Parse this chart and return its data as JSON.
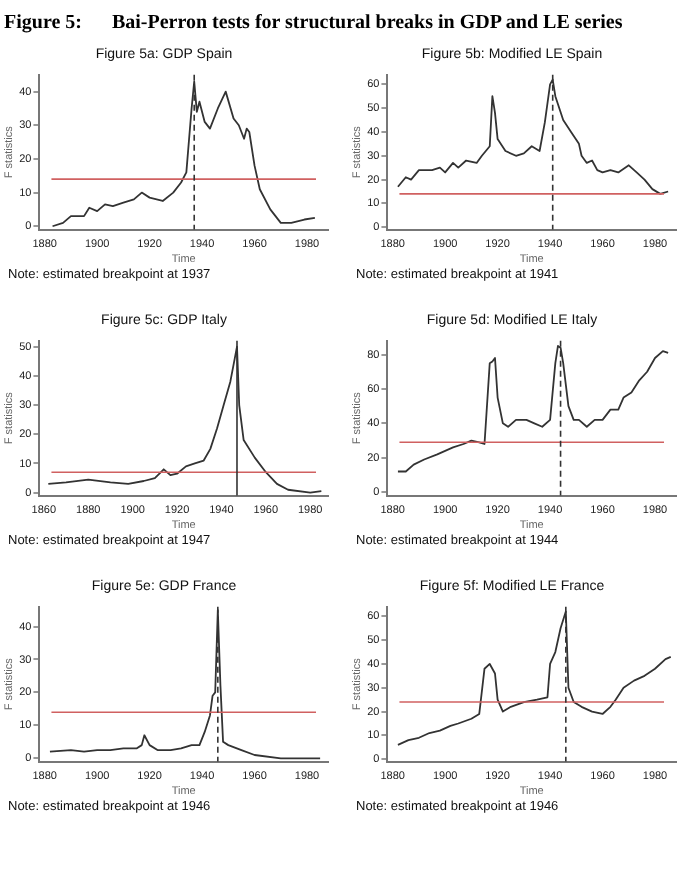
{
  "chart_data": [
    {
      "type": "other",
      "title": "Figure 5:      Bai-Perron tests for structural breaks in GDP and LE series"
    },
    {
      "type": "line",
      "title": "Figure 5a: GDP Spain",
      "xlabel": "Time",
      "ylabel": "F statistics",
      "color": "#333333",
      "marker": "none",
      "grid": false,
      "legend": false,
      "xlim": [
        1878,
        1988
      ],
      "xticks": [
        1880,
        1900,
        1920,
        1940,
        1960,
        1980
      ],
      "ylim": [
        -1,
        45
      ],
      "yticks": [
        0,
        10,
        20,
        30,
        40
      ],
      "x": [
        1883,
        1887,
        1890,
        1895,
        1897,
        1900,
        1903,
        1906,
        1910,
        1914,
        1917,
        1920,
        1925,
        1929,
        1932,
        1934,
        1936,
        1937,
        1938,
        1939,
        1941,
        1943,
        1946,
        1949,
        1952,
        1954,
        1956,
        1957,
        1958,
        1960,
        1962,
        1966,
        1970,
        1974,
        1979,
        1983
      ],
      "values": [
        0,
        1,
        3,
        3,
        5.5,
        4.5,
        6.5,
        6,
        7,
        8,
        10,
        8.5,
        7.5,
        10,
        13,
        16,
        35,
        43,
        34,
        37,
        31,
        29,
        35,
        40,
        32,
        30,
        26,
        29,
        28,
        18,
        11,
        5,
        1,
        1,
        2,
        2.5
      ],
      "ref_lines": [
        {
          "axis": "y",
          "value": 14,
          "color": "#d06060",
          "line_style": "solid"
        },
        {
          "axis": "x",
          "value": 1937,
          "color": "#333333",
          "line_style": "dashed"
        }
      ],
      "annotations": [
        "Note: estimated breakpoint at 1937"
      ]
    },
    {
      "type": "line",
      "title": "Figure 5b: Modified LE Spain",
      "xlabel": "Time",
      "ylabel": "F statistics",
      "color": "#333333",
      "marker": "none",
      "grid": false,
      "legend": false,
      "xlim": [
        1878,
        1988
      ],
      "xticks": [
        1880,
        1900,
        1920,
        1940,
        1960,
        1980
      ],
      "ylim": [
        -1,
        64
      ],
      "yticks": [
        0,
        10,
        20,
        30,
        40,
        50,
        60
      ],
      "x": [
        1882,
        1885,
        1887,
        1890,
        1895,
        1898,
        1900,
        1903,
        1905,
        1908,
        1912,
        1914,
        1917,
        1918,
        1919,
        1920,
        1923,
        1927,
        1930,
        1933,
        1936,
        1938,
        1940,
        1941,
        1942,
        1945,
        1948,
        1951,
        1952,
        1954,
        1956,
        1958,
        1960,
        1963,
        1966,
        1970,
        1973,
        1976,
        1979,
        1982,
        1985
      ],
      "values": [
        17,
        21,
        20,
        24,
        24,
        25,
        23,
        27,
        25,
        28,
        27,
        30,
        34,
        55,
        48,
        37,
        32,
        30,
        31,
        34,
        32,
        44,
        60,
        62,
        55,
        45,
        40,
        35,
        30,
        27,
        28,
        24,
        23,
        24,
        23,
        26,
        23,
        20,
        16,
        14,
        15
      ],
      "ref_lines": [
        {
          "axis": "y",
          "value": 14,
          "color": "#d06060",
          "line_style": "solid"
        },
        {
          "axis": "x",
          "value": 1941,
          "color": "#333333",
          "line_style": "dashed"
        }
      ],
      "annotations": [
        "Note: estimated breakpoint at 1941"
      ]
    },
    {
      "type": "line",
      "title": "Figure 5c: GDP Italy",
      "xlabel": "Time",
      "ylabel": "F statistics",
      "color": "#333333",
      "marker": "none",
      "grid": false,
      "legend": false,
      "xlim": [
        1858,
        1988
      ],
      "xticks": [
        1860,
        1880,
        1900,
        1920,
        1940,
        1960,
        1980
      ],
      "ylim": [
        -1,
        52
      ],
      "yticks": [
        0,
        10,
        20,
        30,
        40,
        50
      ],
      "x": [
        1862,
        1870,
        1880,
        1890,
        1898,
        1905,
        1910,
        1914,
        1917,
        1920,
        1924,
        1928,
        1932,
        1935,
        1938,
        1941,
        1944,
        1946,
        1947,
        1948,
        1950,
        1955,
        1960,
        1965,
        1970,
        1980,
        1985
      ],
      "values": [
        3,
        3.5,
        4.5,
        3.5,
        3,
        4,
        5,
        8,
        6,
        6.5,
        9,
        10,
        11,
        15,
        22,
        30,
        38,
        46,
        50,
        30,
        18,
        12,
        7,
        3,
        1,
        0,
        0.5
      ],
      "ref_lines": [
        {
          "axis": "y",
          "value": 7,
          "color": "#d06060",
          "line_style": "solid"
        },
        {
          "axis": "x",
          "value": 1947,
          "color": "#333333",
          "line_style": "solid"
        }
      ],
      "annotations": [
        "Note: estimated breakpoint at 1947"
      ]
    },
    {
      "type": "line",
      "title": "Figure 5d: Modified LE Italy",
      "xlabel": "Time",
      "ylabel": "F statistics",
      "color": "#333333",
      "marker": "none",
      "grid": false,
      "legend": false,
      "xlim": [
        1878,
        1988
      ],
      "xticks": [
        1880,
        1900,
        1920,
        1940,
        1960,
        1980
      ],
      "ylim": [
        -2,
        88
      ],
      "yticks": [
        0,
        20,
        40,
        60,
        80
      ],
      "x": [
        1882,
        1885,
        1888,
        1892,
        1897,
        1900,
        1903,
        1907,
        1910,
        1913,
        1915,
        1917,
        1918,
        1919,
        1920,
        1922,
        1924,
        1927,
        1931,
        1934,
        1937,
        1940,
        1942,
        1943,
        1944,
        1945,
        1947,
        1949,
        1951,
        1954,
        1957,
        1960,
        1963,
        1966,
        1968,
        1971,
        1974,
        1977,
        1980,
        1983,
        1985
      ],
      "values": [
        12,
        12,
        16,
        19,
        22,
        24,
        26,
        28,
        30,
        29,
        28,
        75,
        76,
        78,
        55,
        40,
        38,
        42,
        42,
        40,
        38,
        42,
        75,
        85,
        84,
        75,
        50,
        42,
        42,
        38,
        42,
        42,
        48,
        48,
        55,
        58,
        65,
        70,
        78,
        82,
        81
      ],
      "ref_lines": [
        {
          "axis": "y",
          "value": 29,
          "color": "#d06060",
          "line_style": "solid"
        },
        {
          "axis": "x",
          "value": 1944,
          "color": "#333333",
          "line_style": "dashed"
        }
      ],
      "annotations": [
        "Note: estimated breakpoint at 1944"
      ]
    },
    {
      "type": "line",
      "title": "Figure 5e: GDP France",
      "xlabel": "Time",
      "ylabel": "F statistics",
      "color": "#333333",
      "marker": "none",
      "grid": false,
      "legend": false,
      "xlim": [
        1878,
        1988
      ],
      "xticks": [
        1880,
        1900,
        1920,
        1940,
        1960,
        1980
      ],
      "ylim": [
        -1,
        46
      ],
      "yticks": [
        0,
        10,
        20,
        30,
        40
      ],
      "x": [
        1882,
        1890,
        1895,
        1900,
        1905,
        1910,
        1915,
        1917,
        1918,
        1920,
        1923,
        1928,
        1932,
        1936,
        1939,
        1941,
        1943,
        1944,
        1945,
        1946,
        1947,
        1948,
        1950,
        1955,
        1960,
        1970,
        1985
      ],
      "values": [
        2,
        2.5,
        2,
        2.5,
        2.5,
        3,
        3,
        4,
        7,
        4,
        2.5,
        2.5,
        3,
        4,
        4,
        8,
        13,
        19,
        20,
        45,
        22,
        5,
        4,
        2.5,
        1,
        0,
        0
      ],
      "ref_lines": [
        {
          "axis": "y",
          "value": 14,
          "color": "#d06060",
          "line_style": "solid"
        },
        {
          "axis": "x",
          "value": 1946,
          "color": "#333333",
          "line_style": "dashed"
        }
      ],
      "annotations": [
        "Note: estimated breakpoint at 1946"
      ]
    },
    {
      "type": "line",
      "title": "Figure 5f: Modified LE France",
      "xlabel": "Time",
      "ylabel": "F statistics",
      "color": "#333333",
      "marker": "none",
      "grid": false,
      "legend": false,
      "xlim": [
        1878,
        1988
      ],
      "xticks": [
        1880,
        1900,
        1920,
        1940,
        1960,
        1980
      ],
      "ylim": [
        -1,
        64
      ],
      "yticks": [
        0,
        10,
        20,
        30,
        40,
        50,
        60
      ],
      "x": [
        1882,
        1886,
        1890,
        1894,
        1898,
        1902,
        1905,
        1910,
        1913,
        1915,
        1917,
        1919,
        1920,
        1922,
        1925,
        1930,
        1935,
        1939,
        1940,
        1942,
        1944,
        1946,
        1947,
        1949,
        1952,
        1956,
        1960,
        1963,
        1965,
        1968,
        1972,
        1976,
        1980,
        1984,
        1986
      ],
      "values": [
        6,
        8,
        9,
        11,
        12,
        14,
        15,
        17,
        19,
        38,
        40,
        36,
        25,
        20,
        22,
        24,
        25,
        26,
        40,
        45,
        55,
        62,
        30,
        24,
        22,
        20,
        19,
        22,
        25,
        30,
        33,
        35,
        38,
        42,
        43
      ],
      "ref_lines": [
        {
          "axis": "y",
          "value": 24,
          "color": "#d06060",
          "line_style": "solid"
        },
        {
          "axis": "x",
          "value": 1946,
          "color": "#333333",
          "line_style": "dashed"
        }
      ],
      "annotations": [
        "Note: estimated breakpoint at 1946"
      ]
    }
  ]
}
